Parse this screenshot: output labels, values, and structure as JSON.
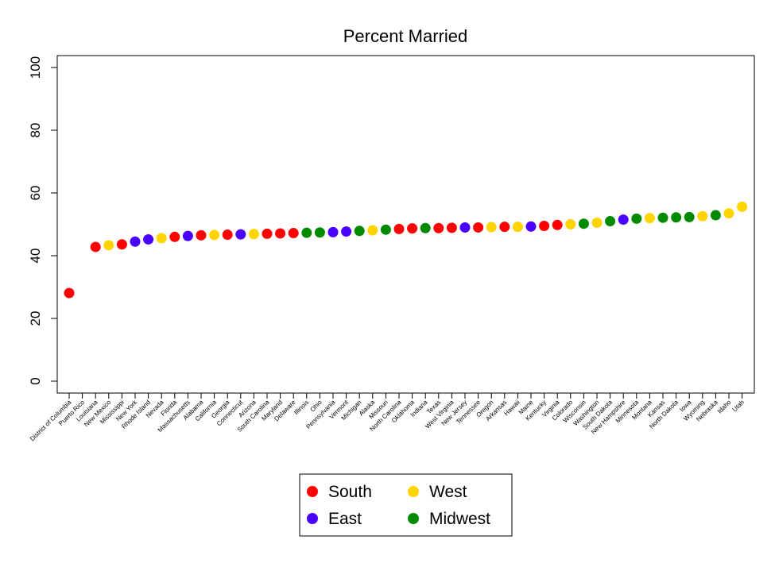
{
  "chart_data": {
    "type": "scatter",
    "title": "Percent Married",
    "xlabel": "",
    "ylabel": "",
    "ylim": [
      0,
      100
    ],
    "yticks": [
      "0",
      "20",
      "40",
      "60",
      "80",
      "100"
    ],
    "grid": false,
    "legend_position": "bottom",
    "colors": {
      "South": "#ff0000",
      "East": "#4a00ff",
      "West": "#ffd400",
      "Midwest": "#008a00"
    },
    "series": [
      {
        "name": "South"
      },
      {
        "name": "East"
      },
      {
        "name": "West"
      },
      {
        "name": "Midwest"
      }
    ],
    "points": [
      {
        "label": "District of Columbia",
        "value": 28.1,
        "region": "South"
      },
      {
        "label": "Puerto Rico",
        "value": null,
        "region": "South"
      },
      {
        "label": "Louisiana",
        "value": 42.8,
        "region": "South"
      },
      {
        "label": "New Mexico",
        "value": 43.3,
        "region": "West"
      },
      {
        "label": "Mississippi",
        "value": 43.6,
        "region": "South"
      },
      {
        "label": "New York",
        "value": 44.5,
        "region": "East"
      },
      {
        "label": "Rhode Island",
        "value": 45.2,
        "region": "East"
      },
      {
        "label": "Nevada",
        "value": 45.6,
        "region": "West"
      },
      {
        "label": "Florida",
        "value": 46.0,
        "region": "South"
      },
      {
        "label": "Massachusetts",
        "value": 46.3,
        "region": "East"
      },
      {
        "label": "Alabama",
        "value": 46.5,
        "region": "South"
      },
      {
        "label": "California",
        "value": 46.6,
        "region": "West"
      },
      {
        "label": "Georgia",
        "value": 46.7,
        "region": "South"
      },
      {
        "label": "Connecticut",
        "value": 46.8,
        "region": "East"
      },
      {
        "label": "Arizona",
        "value": 46.9,
        "region": "West"
      },
      {
        "label": "South Carolina",
        "value": 47.0,
        "region": "South"
      },
      {
        "label": "Maryland",
        "value": 47.1,
        "region": "South"
      },
      {
        "label": "Delaware",
        "value": 47.2,
        "region": "South"
      },
      {
        "label": "Illinois",
        "value": 47.3,
        "region": "Midwest"
      },
      {
        "label": "Ohio",
        "value": 47.4,
        "region": "Midwest"
      },
      {
        "label": "Pennsylvania",
        "value": 47.5,
        "region": "East"
      },
      {
        "label": "Vermont",
        "value": 47.7,
        "region": "East"
      },
      {
        "label": "Michigan",
        "value": 47.9,
        "region": "Midwest"
      },
      {
        "label": "Alaska",
        "value": 48.1,
        "region": "West"
      },
      {
        "label": "Missouri",
        "value": 48.3,
        "region": "Midwest"
      },
      {
        "label": "North Carolina",
        "value": 48.5,
        "region": "South"
      },
      {
        "label": "Oklahoma",
        "value": 48.7,
        "region": "South"
      },
      {
        "label": "Indiana",
        "value": 48.8,
        "region": "Midwest"
      },
      {
        "label": "Texas",
        "value": 48.8,
        "region": "South"
      },
      {
        "label": "West Virginia",
        "value": 48.9,
        "region": "South"
      },
      {
        "label": "New Jersey",
        "value": 49.0,
        "region": "East"
      },
      {
        "label": "Tennessee",
        "value": 49.0,
        "region": "South"
      },
      {
        "label": "Oregon",
        "value": 49.1,
        "region": "West"
      },
      {
        "label": "Arkansas",
        "value": 49.2,
        "region": "South"
      },
      {
        "label": "Hawaii",
        "value": 49.2,
        "region": "West"
      },
      {
        "label": "Maine",
        "value": 49.3,
        "region": "East"
      },
      {
        "label": "Kentucky",
        "value": 49.5,
        "region": "South"
      },
      {
        "label": "Virginia",
        "value": 49.8,
        "region": "South"
      },
      {
        "label": "Colorado",
        "value": 50.0,
        "region": "West"
      },
      {
        "label": "Wisconsin",
        "value": 50.2,
        "region": "Midwest"
      },
      {
        "label": "Washington",
        "value": 50.5,
        "region": "West"
      },
      {
        "label": "South Dakota",
        "value": 51.0,
        "region": "Midwest"
      },
      {
        "label": "New Hampshire",
        "value": 51.5,
        "region": "East"
      },
      {
        "label": "Minnesota",
        "value": 51.8,
        "region": "Midwest"
      },
      {
        "label": "Montana",
        "value": 52.0,
        "region": "West"
      },
      {
        "label": "Kansas",
        "value": 52.1,
        "region": "Midwest"
      },
      {
        "label": "North Dakota",
        "value": 52.2,
        "region": "Midwest"
      },
      {
        "label": "Iowa",
        "value": 52.3,
        "region": "Midwest"
      },
      {
        "label": "Wyoming",
        "value": 52.6,
        "region": "West"
      },
      {
        "label": "Nebraska",
        "value": 52.9,
        "region": "Midwest"
      },
      {
        "label": "Idaho",
        "value": 53.5,
        "region": "West"
      },
      {
        "label": "Utah",
        "value": 55.6,
        "region": "West"
      }
    ]
  }
}
